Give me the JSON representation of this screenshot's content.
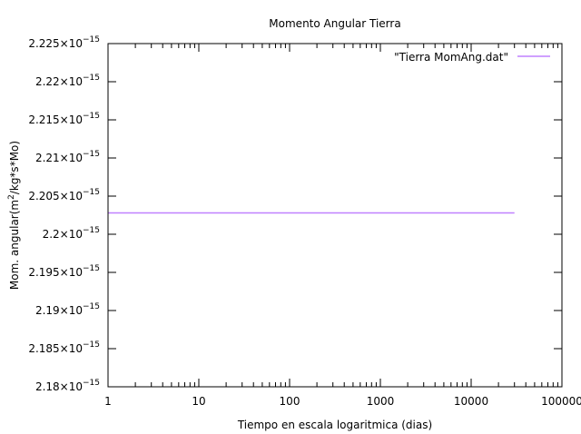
{
  "chart_data": {
    "type": "line",
    "title": "Momento Angular Tierra",
    "xlabel": "Tiempo en escala logaritmica (dias)",
    "ylabel": {
      "prefix": "Mom. angular(m",
      "sup": "2",
      "suffix": "/kg*s*Mo)"
    },
    "x_scale": "log",
    "xlim": [
      1,
      100000
    ],
    "ylim": [
      2.18e-15,
      2.225e-15
    ],
    "x_ticks": [
      {
        "value": 1,
        "label": "1"
      },
      {
        "value": 10,
        "label": "10"
      },
      {
        "value": 100,
        "label": "100"
      },
      {
        "value": 1000,
        "label": "1000"
      },
      {
        "value": 10000,
        "label": "10000"
      },
      {
        "value": 100000,
        "label": "100000"
      }
    ],
    "y_ticks": [
      {
        "value": 2.18e-15,
        "mantissa": "2.18",
        "exp": "−15"
      },
      {
        "value": 2.185e-15,
        "mantissa": "2.185",
        "exp": "−15"
      },
      {
        "value": 2.19e-15,
        "mantissa": "2.19",
        "exp": "−15"
      },
      {
        "value": 2.195e-15,
        "mantissa": "2.195",
        "exp": "−15"
      },
      {
        "value": 2.2e-15,
        "mantissa": "2.2",
        "exp": "−15"
      },
      {
        "value": 2.205e-15,
        "mantissa": "2.205",
        "exp": "−15"
      },
      {
        "value": 2.21e-15,
        "mantissa": "2.21",
        "exp": "−15"
      },
      {
        "value": 2.215e-15,
        "mantissa": "2.215",
        "exp": "−15"
      },
      {
        "value": 2.22e-15,
        "mantissa": "2.22",
        "exp": "−15"
      },
      {
        "value": 2.225e-15,
        "mantissa": "2.225",
        "exp": "−15"
      }
    ],
    "series": [
      {
        "name": "\"Tierra MomAng.dat\"",
        "color": "#c080ff",
        "x": [
          1,
          30000
        ],
        "y": [
          2.2028e-15,
          2.2028e-15
        ]
      }
    ],
    "grid": false,
    "legend": "top-right"
  }
}
